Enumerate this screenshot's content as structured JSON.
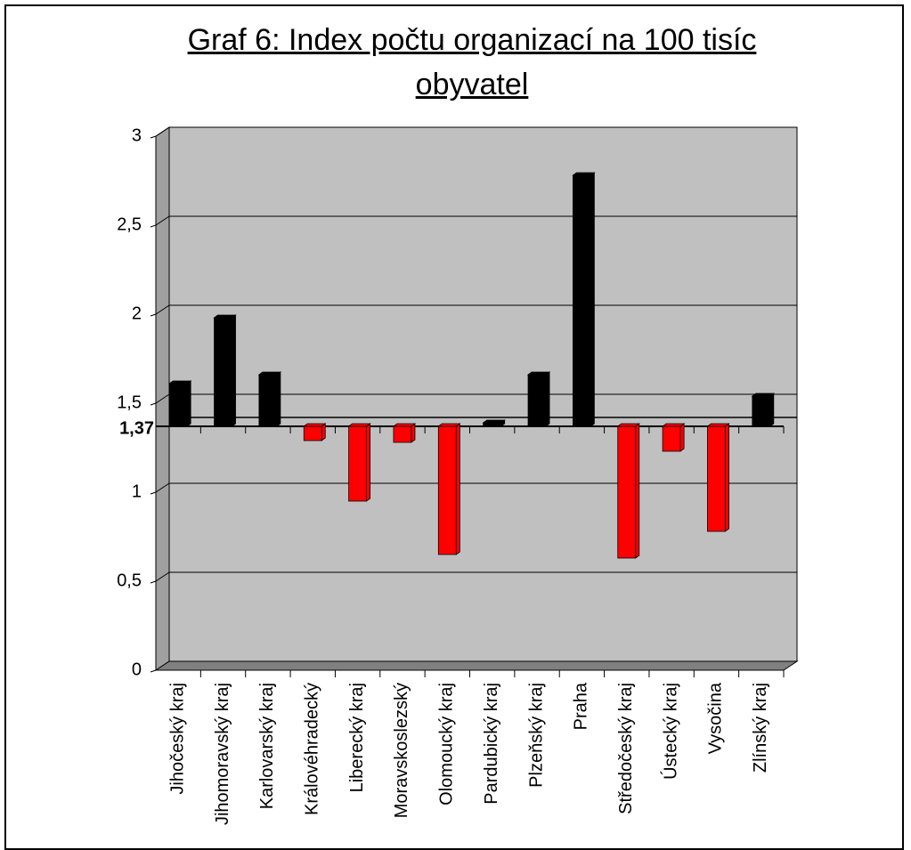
{
  "chart_data": {
    "type": "bar",
    "title": "Graf 6: Index počtu organizací na 100 tisíc obyvatel",
    "categories": [
      "Jihočeský kraj",
      "Jihomoravský kraj",
      "Karlovarský kraj",
      "Královéhradecký",
      "Liberecký kraj",
      "Moravskoslezský",
      "Olomoucký kraj",
      "Pardubický kraj",
      "Plzeňský kraj",
      "Praha",
      "Středočeský kraj",
      "Ústecký kraj",
      "Vysočina",
      "Zlínský kraj"
    ],
    "values": [
      1.61,
      1.98,
      1.66,
      1.29,
      0.95,
      1.28,
      0.65,
      1.39,
      1.66,
      2.78,
      0.63,
      1.23,
      0.78,
      1.54
    ],
    "colors": [
      "#000000",
      "#000000",
      "#000000",
      "#ff0000",
      "#ff0000",
      "#ff0000",
      "#ff0000",
      "#000000",
      "#000000",
      "#000000",
      "#ff0000",
      "#ff0000",
      "#ff0000",
      "#000000"
    ],
    "baseline": {
      "value": 1.37,
      "label": "1,37"
    },
    "ylim": [
      0,
      3
    ],
    "yticks": [
      0,
      {
        "value": 0.5,
        "label": "0,5"
      },
      1,
      {
        "value": 1.5,
        "label": "1,5"
      },
      2,
      {
        "value": 2.5,
        "label": "2,5"
      },
      3
    ],
    "grid": true
  }
}
